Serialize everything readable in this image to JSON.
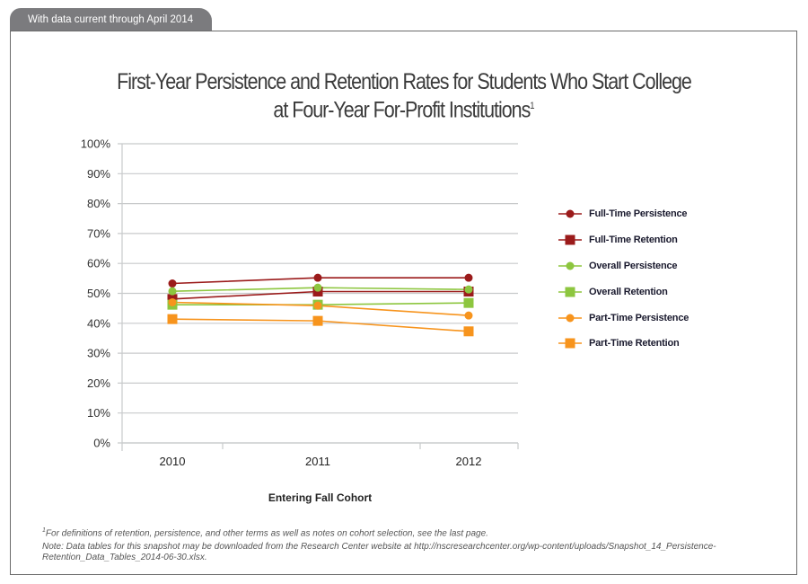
{
  "header": {
    "tab_label": "With data current through April 2014"
  },
  "chart_data": {
    "type": "line",
    "title": "First-Year Persistence and Retention Rates for Students Who Start College at Four-Year For-Profit Institutions",
    "title_line1": "First-Year Persistence and Retention Rates for Students Who Start College",
    "title_line2": "at Four-Year For-Profit Institutions",
    "title_footnote_marker": "1",
    "categories": [
      "2010",
      "2011",
      "2012"
    ],
    "xlabel": "Entering Fall Cohort",
    "ylabel": "",
    "ylim": [
      0,
      100
    ],
    "yticks": [
      "0%",
      "10%",
      "20%",
      "30%",
      "40%",
      "50%",
      "60%",
      "70%",
      "80%",
      "90%",
      "100%"
    ],
    "grid": true,
    "legend_position": "right",
    "series": [
      {
        "name": "Full-Time Persistence",
        "marker": "circle",
        "color": "#9b1b1b",
        "values": [
          53.3,
          55.2,
          55.2
        ]
      },
      {
        "name": "Full-Time Retention",
        "marker": "square",
        "color": "#9b1b1b",
        "values": [
          48.1,
          50.6,
          50.6
        ]
      },
      {
        "name": "Overall Persistence",
        "marker": "circle",
        "color": "#8dc63f",
        "values": [
          50.7,
          51.9,
          51.3
        ]
      },
      {
        "name": "Overall Retention",
        "marker": "square",
        "color": "#8dc63f",
        "values": [
          46.2,
          46.2,
          46.8
        ]
      },
      {
        "name": "Part-Time Persistence",
        "marker": "circle",
        "color": "#f7941d",
        "values": [
          47.0,
          45.9,
          42.6
        ]
      },
      {
        "name": "Part-Time Retention",
        "marker": "square",
        "color": "#f7941d",
        "values": [
          41.4,
          40.8,
          37.3
        ]
      }
    ]
  },
  "footnotes": {
    "marker": "1",
    "definitions": "For definitions of retention, persistence, and other terms as well as notes on cohort selection, see the last page.",
    "note_line1": "Note: Data tables for this snapshot may be downloaded from the Research Center website at http://nscresearchcenter.org/wp-content/uploads/Snapshot_14_Persistence-",
    "note_line2": "Retention_Data_Tables_2014-06-30.xlsx."
  }
}
